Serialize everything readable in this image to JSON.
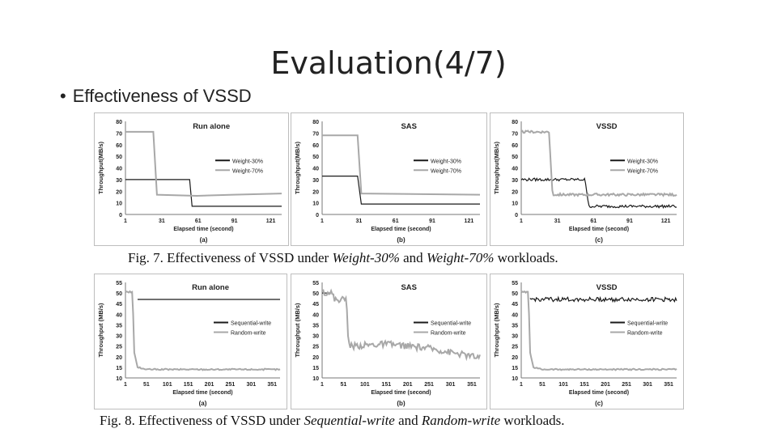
{
  "slide": {
    "title": "Evaluation(4/7)",
    "bullet": "Effectiveness of VSSD"
  },
  "colors": {
    "dark_series": "#1a1a1a",
    "light_series": "#a8a8a8",
    "border": "#bdbdbd"
  },
  "fig7": {
    "caption": {
      "prefix": "Fig. 7. Effectiveness of VSSD under ",
      "a": "Weight-30%",
      "mid": " and ",
      "b": "Weight-70%",
      "suffix": " workloads."
    },
    "panels": [
      {
        "id": "a",
        "title": "Run alone",
        "sublabel": "(a)"
      },
      {
        "id": "b",
        "title": "SAS",
        "sublabel": "(b)"
      },
      {
        "id": "c",
        "title": "VSSD",
        "sublabel": "(c)"
      }
    ]
  },
  "fig8": {
    "caption": {
      "prefix": "Fig. 8. Effectiveness of VSSD under ",
      "a": "Sequential-write",
      "mid": " and ",
      "b": "Random-write",
      "suffix": " workloads."
    },
    "panels": [
      {
        "id": "a",
        "title": "Run alone",
        "sublabel": "(a)"
      },
      {
        "id": "b",
        "title": "SAS",
        "sublabel": "(b)"
      },
      {
        "id": "c",
        "title": "VSSD",
        "sublabel": "(c)"
      }
    ]
  },
  "chart_data": [
    {
      "type": "line",
      "figure": "fig7",
      "panel": "a",
      "title": "Run alone",
      "xlabel": "Elapsed time (second)",
      "ylabel": "Throughput(MB/s)",
      "xlim": [
        1,
        130
      ],
      "ylim": [
        0,
        80
      ],
      "xticks": [
        "1",
        "31",
        "61",
        "91",
        "121"
      ],
      "xtick_values": [
        1,
        31,
        61,
        91,
        121
      ],
      "yticks": [
        0,
        10,
        20,
        30,
        40,
        50,
        60,
        70,
        80
      ],
      "legend_position": "right",
      "series": [
        {
          "name": "Weight-30%",
          "color": "dark",
          "x": [
            1,
            54,
            56,
            130
          ],
          "y": [
            30,
            30,
            7,
            7
          ]
        },
        {
          "name": "Weight-70%",
          "color": "light",
          "x": [
            1,
            24,
            27,
            60,
            90,
            130
          ],
          "y": [
            71,
            71,
            17,
            16,
            17,
            18
          ]
        }
      ]
    },
    {
      "type": "line",
      "figure": "fig7",
      "panel": "b",
      "title": "SAS",
      "xlabel": "Elapsed time (second)",
      "ylabel": "Throughput(MB/s)",
      "xlim": [
        1,
        130
      ],
      "ylim": [
        0,
        80
      ],
      "xticks": [
        "1",
        "31",
        "61",
        "91",
        "121"
      ],
      "xtick_values": [
        1,
        31,
        61,
        91,
        121
      ],
      "yticks": [
        0,
        10,
        20,
        30,
        40,
        50,
        60,
        70,
        80
      ],
      "legend_position": "right",
      "series": [
        {
          "name": "Weight-30%",
          "color": "dark",
          "x": [
            1,
            30,
            33,
            130
          ],
          "y": [
            33,
            33,
            9,
            9
          ]
        },
        {
          "name": "Weight-70%",
          "color": "light",
          "x": [
            1,
            30,
            33,
            130
          ],
          "y": [
            68,
            68,
            18,
            17
          ]
        }
      ]
    },
    {
      "type": "line",
      "figure": "fig7",
      "panel": "c",
      "title": "VSSD",
      "xlabel": "Elapsed time (second)",
      "ylabel": "Throughput(MB/s)",
      "xlim": [
        1,
        130
      ],
      "ylim": [
        0,
        80
      ],
      "xticks": [
        "1",
        "31",
        "61",
        "91",
        "121"
      ],
      "xtick_values": [
        1,
        31,
        61,
        91,
        121
      ],
      "yticks": [
        0,
        10,
        20,
        30,
        40,
        50,
        60,
        70,
        80
      ],
      "legend_position": "right",
      "series": [
        {
          "name": "Weight-30%",
          "color": "dark",
          "x": [
            1,
            54,
            57,
            130
          ],
          "y": [
            30,
            30,
            7,
            7
          ],
          "noise": 1.2
        },
        {
          "name": "Weight-70%",
          "color": "light",
          "x": [
            1,
            24,
            27,
            130
          ],
          "y": [
            71,
            71,
            17,
            17
          ],
          "noise": 1.0
        }
      ]
    },
    {
      "type": "line",
      "figure": "fig8",
      "panel": "a",
      "title": "Run alone",
      "xlabel": "Elapsed time (second)",
      "ylabel": "Throughput (MB/s)",
      "xlim": [
        1,
        370
      ],
      "ylim": [
        10,
        55
      ],
      "xticks": [
        "1",
        "51",
        "101",
        "151",
        "201",
        "251",
        "301",
        "351"
      ],
      "xtick_values": [
        1,
        51,
        101,
        151,
        201,
        251,
        301,
        351
      ],
      "yticks": [
        10,
        15,
        20,
        25,
        30,
        35,
        40,
        45,
        50,
        55
      ],
      "legend_position": "right",
      "series": [
        {
          "name": "Sequential-write",
          "color": "dark",
          "x": [
            30,
            370
          ],
          "y": [
            47,
            47
          ]
        },
        {
          "name": "Random-write",
          "color": "light",
          "x": [
            1,
            18,
            22,
            30,
            50,
            370
          ],
          "y": [
            50.5,
            50.5,
            22,
            15,
            14,
            14
          ],
          "noise": 0.3
        }
      ]
    },
    {
      "type": "line",
      "figure": "fig8",
      "panel": "b",
      "title": "SAS",
      "xlabel": "Elapsed time (second)",
      "ylabel": "Throughput (MB/s)",
      "xlim": [
        1,
        370
      ],
      "ylim": [
        10,
        55
      ],
      "xticks": [
        "1",
        "51",
        "101",
        "151",
        "201",
        "251",
        "301",
        "351"
      ],
      "xtick_values": [
        1,
        51,
        101,
        151,
        201,
        251,
        301,
        351
      ],
      "yticks": [
        10,
        15,
        20,
        25,
        30,
        35,
        40,
        45,
        50,
        55
      ],
      "legend_position": "right",
      "series": [
        {
          "name": "Sequential-write",
          "color": "dark",
          "x": [
            1,
            20
          ],
          "y": [
            50,
            50
          ]
        },
        {
          "name": "Random-write",
          "color": "light",
          "x": [
            1,
            22,
            30,
            58,
            62,
            68,
            150,
            250,
            370
          ],
          "y": [
            50.5,
            50.5,
            47,
            47,
            28,
            25,
            26,
            24,
            19.5
          ],
          "noise": 1.5
        }
      ]
    },
    {
      "type": "line",
      "figure": "fig8",
      "panel": "c",
      "title": "VSSD",
      "xlabel": "Elapsed time (second)",
      "ylabel": "Throughput (MB/s)",
      "xlim": [
        1,
        370
      ],
      "ylim": [
        10,
        55
      ],
      "xticks": [
        "1",
        "51",
        "101",
        "151",
        "201",
        "251",
        "301",
        "351"
      ],
      "xtick_values": [
        1,
        51,
        101,
        151,
        201,
        251,
        301,
        351
      ],
      "yticks": [
        10,
        15,
        20,
        25,
        30,
        35,
        40,
        45,
        50,
        55
      ],
      "legend_position": "right",
      "series": [
        {
          "name": "Sequential-write",
          "color": "dark",
          "x": [
            22,
            370
          ],
          "y": [
            47,
            47
          ],
          "noise": 1.0
        },
        {
          "name": "Random-write",
          "color": "light",
          "x": [
            1,
            18,
            22,
            30,
            50,
            370
          ],
          "y": [
            50.5,
            50.5,
            22,
            15,
            14,
            14
          ],
          "noise": 0.3
        }
      ]
    }
  ]
}
